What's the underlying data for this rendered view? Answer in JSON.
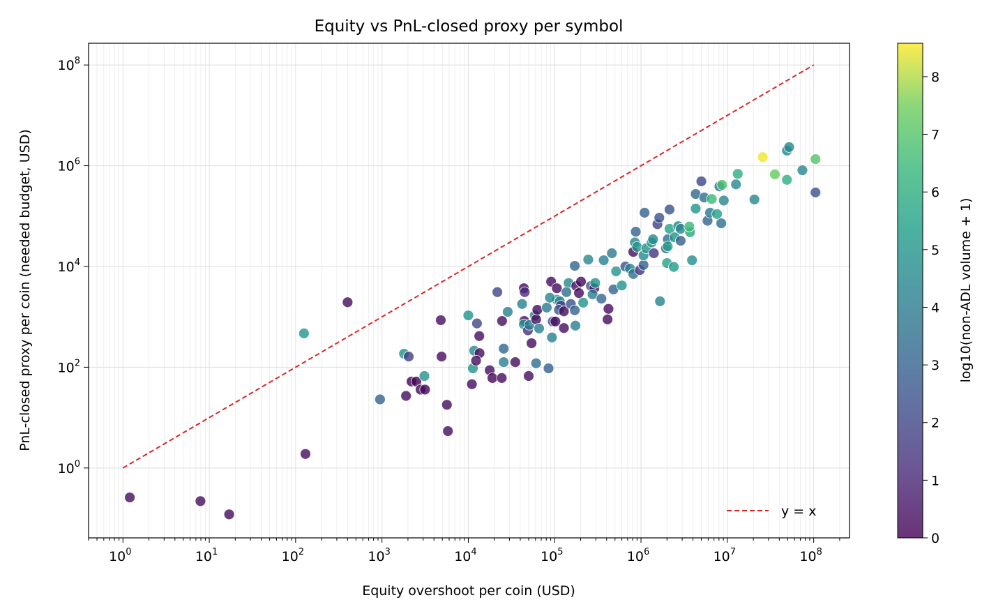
{
  "chart_data": {
    "type": "scatter",
    "title": "Equity vs PnL-closed proxy per symbol",
    "xlabel": "Equity overshoot per coin (USD)",
    "ylabel": "PnL-closed proxy per coin (needed budget, USD)",
    "xscale": "log",
    "yscale": "log",
    "xlim": [
      0.4,
      260000000.0
    ],
    "ylim": [
      0.041,
      270000000.0
    ],
    "x_ticks": [
      {
        "value": 1,
        "exp": "0"
      },
      {
        "value": 10,
        "exp": "1"
      },
      {
        "value": 100,
        "exp": "2"
      },
      {
        "value": 1000,
        "exp": "3"
      },
      {
        "value": 10000,
        "exp": "4"
      },
      {
        "value": 100000,
        "exp": "5"
      },
      {
        "value": 1000000,
        "exp": "6"
      },
      {
        "value": 10000000,
        "exp": "7"
      },
      {
        "value": 100000000,
        "exp": "8"
      }
    ],
    "y_ticks": [
      {
        "value": 1,
        "exp": "0"
      },
      {
        "value": 100,
        "exp": "2"
      },
      {
        "value": 10000,
        "exp": "4"
      },
      {
        "value": 1000000,
        "exp": "6"
      },
      {
        "value": 100000000,
        "exp": "8"
      }
    ],
    "tick_base": "10",
    "grid": true,
    "colormap": "viridis",
    "colorbar": {
      "label": "log10(non-ADL volume + 1)",
      "range": [
        0,
        8.58
      ],
      "ticks": [
        "0",
        "1",
        "2",
        "3",
        "4",
        "5",
        "6",
        "7",
        "8"
      ]
    },
    "reference_line": {
      "label": "y = x",
      "from": 1,
      "to": 100000000.0,
      "color": "#d62728",
      "style": "dashed"
    },
    "legend": {
      "placement": "lower-right",
      "entries": [
        "y = x"
      ]
    },
    "points": [
      [
        1.2,
        0.26,
        0.3
      ],
      [
        7.9,
        0.22,
        0.3
      ],
      [
        17,
        0.12,
        0.3
      ],
      [
        130,
        1.9,
        0.3
      ],
      [
        125,
        470,
        5
      ],
      [
        400,
        1950,
        0.3
      ],
      [
        950,
        23,
        3
      ],
      [
        1800,
        186,
        5
      ],
      [
        2040,
        163,
        1.8
      ],
      [
        1900,
        27,
        0.3
      ],
      [
        2200,
        52,
        0.1
      ],
      [
        2500,
        52,
        0.1
      ],
      [
        2800,
        36,
        0.2
      ],
      [
        3150,
        36,
        0.2
      ],
      [
        3100,
        67,
        5
      ],
      [
        4800,
        860,
        0.3
      ],
      [
        4900,
        163,
        0.3
      ],
      [
        5650,
        18,
        0.3
      ],
      [
        5800,
        5.4,
        0.3
      ],
      [
        10000,
        1070,
        5
      ],
      [
        11000,
        46,
        0.3
      ],
      [
        11300,
        95,
        5
      ],
      [
        11700,
        213,
        4.5
      ],
      [
        12600,
        740,
        2
      ],
      [
        13400,
        415,
        0.3
      ],
      [
        13500,
        190,
        0.3
      ],
      [
        12300,
        135,
        0.3
      ],
      [
        17700,
        87,
        0.3
      ],
      [
        19000,
        61,
        0.2
      ],
      [
        21700,
        3100,
        2
      ],
      [
        24400,
        61,
        0.3
      ],
      [
        24600,
        830,
        0.3
      ],
      [
        25700,
        234,
        3.2
      ],
      [
        25700,
        126,
        4.2
      ],
      [
        28600,
        1260,
        4.2
      ],
      [
        35000,
        126,
        0.3
      ],
      [
        42000,
        1800,
        4.2
      ],
      [
        44000,
        3700,
        0.3
      ],
      [
        45000,
        3100,
        1.2
      ],
      [
        44500,
        830,
        0.3
      ],
      [
        44000,
        710,
        5
      ],
      [
        49000,
        540,
        1.3
      ],
      [
        51000,
        690,
        4
      ],
      [
        54000,
        300,
        0.3
      ],
      [
        50000,
        67,
        0.3
      ],
      [
        59000,
        1070,
        3.5
      ],
      [
        61000,
        890,
        0.3
      ],
      [
        63000,
        1380,
        0.3
      ],
      [
        66000,
        590,
        4.2
      ],
      [
        61000,
        120,
        3.5
      ],
      [
        85000,
        95,
        3
      ],
      [
        81000,
        1530,
        4
      ],
      [
        91000,
        5000,
        0.3
      ],
      [
        95000,
        810,
        2.2
      ],
      [
        102000,
        810,
        0.3
      ],
      [
        93000,
        390,
        4.2
      ],
      [
        106000,
        3700,
        0.3
      ],
      [
        106000,
        2180,
        5
      ],
      [
        115000,
        2040,
        4.3
      ],
      [
        118000,
        1670,
        1.8
      ],
      [
        112000,
        1380,
        2.7
      ],
      [
        128000,
        1290,
        0.3
      ],
      [
        128000,
        600,
        0.3
      ],
      [
        88000,
        2400,
        4.5
      ],
      [
        145000,
        4700,
        4.6
      ],
      [
        137000,
        3100,
        3.5
      ],
      [
        154000,
        1800,
        2.5
      ],
      [
        171000,
        1350,
        3
      ],
      [
        171000,
        10300,
        3.2
      ],
      [
        174000,
        670,
        4.2
      ],
      [
        178000,
        4100,
        0.3
      ],
      [
        191000,
        2970,
        0.3
      ],
      [
        202000,
        5000,
        0.3
      ],
      [
        214000,
        1910,
        5
      ],
      [
        245000,
        13700,
        4.5
      ],
      [
        263000,
        4100,
        2.5
      ],
      [
        288000,
        3700,
        0.3
      ],
      [
        275000,
        2800,
        4
      ],
      [
        295000,
        4700,
        5
      ],
      [
        348000,
        2300,
        3.2
      ],
      [
        370000,
        13300,
        4.2
      ],
      [
        420000,
        1440,
        0.3
      ],
      [
        410000,
        890,
        0.3
      ],
      [
        460000,
        18300,
        4
      ],
      [
        480000,
        3500,
        3
      ],
      [
        515000,
        8000,
        5
      ],
      [
        600000,
        4200,
        5
      ],
      [
        660000,
        10000,
        2.5
      ],
      [
        745000,
        9100,
        4.5
      ],
      [
        815000,
        7100,
        3.5
      ],
      [
        850000,
        30000,
        4.5
      ],
      [
        870000,
        49000,
        3
      ],
      [
        815000,
        19500,
        0.3
      ],
      [
        900000,
        24500,
        5
      ],
      [
        970000,
        8500,
        1.5
      ],
      [
        1070000,
        10700,
        3
      ],
      [
        1070000,
        16600,
        4.6
      ],
      [
        1150000,
        22900,
        5
      ],
      [
        1100000,
        117000,
        3
      ],
      [
        1330000,
        30000,
        5
      ],
      [
        1380000,
        34700,
        4.6
      ],
      [
        1410000,
        18300,
        1.5
      ],
      [
        1550000,
        69000,
        1.8
      ],
      [
        1630000,
        93000,
        2.5
      ],
      [
        1660000,
        2040,
        4.3
      ],
      [
        1950000,
        22900,
        3
      ],
      [
        2040000,
        34700,
        3.5
      ],
      [
        2040000,
        25100,
        5.5
      ],
      [
        2140000,
        56000,
        5.5
      ],
      [
        2000000,
        11700,
        5.5
      ],
      [
        2140000,
        135000,
        2.5
      ],
      [
        2400000,
        9800,
        5.3
      ],
      [
        2450000,
        38000,
        5
      ],
      [
        2700000,
        63000,
        4.5
      ],
      [
        2880000,
        32400,
        3
      ],
      [
        2880000,
        56000,
        4.5
      ],
      [
        3700000,
        48000,
        5.8
      ],
      [
        3630000,
        62000,
        6.5
      ],
      [
        3900000,
        13300,
        4.8
      ],
      [
        4300000,
        275000,
        3.2
      ],
      [
        4300000,
        141000,
        5
      ],
      [
        5000000,
        490000,
        2
      ],
      [
        5400000,
        234000,
        3.5
      ],
      [
        5900000,
        81000,
        3
      ],
      [
        6300000,
        117000,
        4
      ],
      [
        6600000,
        219000,
        6.5
      ],
      [
        7600000,
        110000,
        5.5
      ],
      [
        8100000,
        389000,
        3.5
      ],
      [
        8700000,
        417000,
        6.8
      ],
      [
        8500000,
        72000,
        3.5
      ],
      [
        9100000,
        204000,
        4.5
      ],
      [
        12600000,
        427000,
        4.5
      ],
      [
        13200000,
        690000,
        6
      ],
      [
        20600000,
        214000,
        4.5
      ],
      [
        25700000,
        1480000,
        8.5
      ],
      [
        35500000,
        676000,
        7.3
      ],
      [
        49000000,
        525000,
        6
      ],
      [
        49000000,
        2000000,
        4.5
      ],
      [
        52000000,
        2340000,
        4.5
      ],
      [
        74000000,
        813000,
        4.5
      ],
      [
        105000000,
        1350000,
        7
      ],
      [
        105000000,
        295000,
        2.5
      ]
    ]
  }
}
